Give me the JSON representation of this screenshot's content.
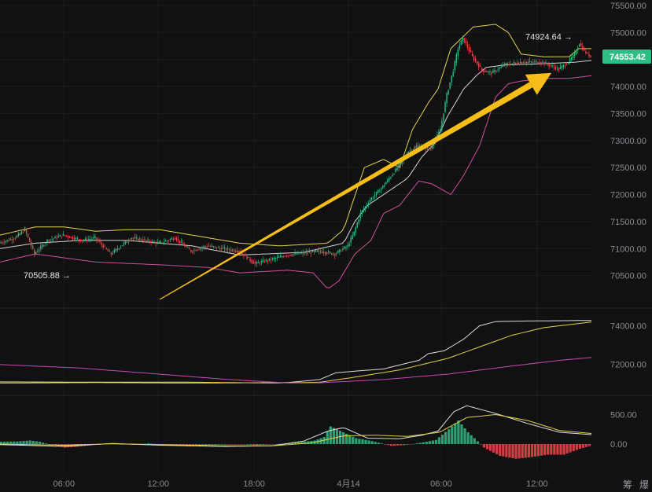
{
  "colors": {
    "background": "#111112",
    "up": "#2ebd85",
    "down": "#f0464b",
    "upper_band": "#e3d34a",
    "middle_band": "#d6d6d6",
    "lower_band": "#d24fa0",
    "arrow": "#f6bd16",
    "ma_white": "#dcdcdc",
    "ma_yellow": "#e3d34a",
    "ma_pink": "#c84bb0",
    "price_badge": "#2ebd85"
  },
  "chart_data": [
    {
      "type": "candlestick",
      "panel": "price",
      "ylim": [
        70000,
        75600
      ],
      "yticks": [
        "75500.00",
        "75000.00",
        "74500.00",
        "74000.00",
        "73500.00",
        "73000.00",
        "72500.00",
        "72000.00",
        "71500.00",
        "71000.00",
        "70500.00"
      ],
      "close_path": [
        [
          0,
          71100
        ],
        [
          10,
          71200
        ],
        [
          16,
          71350
        ],
        [
          22,
          70900
        ],
        [
          30,
          71150
        ],
        [
          40,
          71250
        ],
        [
          52,
          71150
        ],
        [
          60,
          71200
        ],
        [
          68,
          70950
        ],
        [
          70,
          70900
        ],
        [
          76,
          71050
        ],
        [
          83,
          71200
        ],
        [
          100,
          71100
        ],
        [
          110,
          71200
        ],
        [
          120,
          70950
        ],
        [
          130,
          71050
        ],
        [
          150,
          70950
        ],
        [
          160,
          70720
        ],
        [
          180,
          70880
        ],
        [
          200,
          70950
        ],
        [
          210,
          70900
        ],
        [
          218,
          71050
        ],
        [
          222,
          71300
        ],
        [
          226,
          71650
        ],
        [
          232,
          71900
        ],
        [
          240,
          72150
        ],
        [
          248,
          72450
        ],
        [
          256,
          72800
        ],
        [
          262,
          72900
        ],
        [
          270,
          72850
        ],
        [
          276,
          73200
        ],
        [
          280,
          73850
        ],
        [
          284,
          74300
        ],
        [
          287,
          74700
        ],
        [
          290,
          74900
        ],
        [
          296,
          74550
        ],
        [
          302,
          74300
        ],
        [
          308,
          74250
        ],
        [
          316,
          74400
        ],
        [
          326,
          74450
        ],
        [
          340,
          74450
        ],
        [
          350,
          74320
        ],
        [
          356,
          74450
        ],
        [
          360,
          74600
        ],
        [
          363,
          74800
        ],
        [
          366,
          74650
        ],
        [
          370,
          74550
        ]
      ],
      "candles_total": 370,
      "bollinger": {
        "upper": [
          [
            0,
            71250
          ],
          [
            22,
            71400
          ],
          [
            40,
            71400
          ],
          [
            60,
            71320
          ],
          [
            80,
            71350
          ],
          [
            100,
            71350
          ],
          [
            130,
            71200
          ],
          [
            150,
            71100
          ],
          [
            175,
            71050
          ],
          [
            205,
            71100
          ],
          [
            215,
            71350
          ],
          [
            220,
            71800
          ],
          [
            228,
            72500
          ],
          [
            240,
            72650
          ],
          [
            250,
            72500
          ],
          [
            258,
            73200
          ],
          [
            264,
            73500
          ],
          [
            268,
            73700
          ],
          [
            274,
            73950
          ],
          [
            282,
            74700
          ],
          [
            296,
            75100
          ],
          [
            310,
            75150
          ],
          [
            318,
            75000
          ],
          [
            326,
            74600
          ],
          [
            340,
            74550
          ],
          [
            356,
            74550
          ],
          [
            362,
            74700
          ],
          [
            370,
            74700
          ]
        ],
        "middle": [
          [
            0,
            71000
          ],
          [
            22,
            71100
          ],
          [
            50,
            71150
          ],
          [
            80,
            71150
          ],
          [
            120,
            71050
          ],
          [
            150,
            70880
          ],
          [
            190,
            70930
          ],
          [
            215,
            71100
          ],
          [
            222,
            71500
          ],
          [
            230,
            71800
          ],
          [
            240,
            72000
          ],
          [
            255,
            72300
          ],
          [
            264,
            72700
          ],
          [
            272,
            72950
          ],
          [
            280,
            73450
          ],
          [
            290,
            73950
          ],
          [
            298,
            74200
          ],
          [
            304,
            74350
          ],
          [
            316,
            74400
          ],
          [
            340,
            74420
          ],
          [
            360,
            74450
          ],
          [
            370,
            74480
          ]
        ],
        "lower": [
          [
            0,
            70750
          ],
          [
            22,
            70900
          ],
          [
            60,
            70750
          ],
          [
            100,
            70700
          ],
          [
            130,
            70650
          ],
          [
            150,
            70550
          ],
          [
            180,
            70600
          ],
          [
            196,
            70550
          ],
          [
            205,
            70250
          ],
          [
            212,
            70400
          ],
          [
            222,
            70900
          ],
          [
            232,
            71150
          ],
          [
            240,
            71650
          ],
          [
            250,
            71800
          ],
          [
            262,
            72250
          ],
          [
            270,
            72200
          ],
          [
            282,
            72000
          ],
          [
            290,
            72350
          ],
          [
            300,
            72900
          ],
          [
            310,
            73800
          ],
          [
            318,
            74050
          ],
          [
            326,
            74100
          ],
          [
            340,
            74150
          ],
          [
            356,
            74150
          ],
          [
            370,
            74200
          ]
        ]
      },
      "annotations": [
        {
          "text": "70505.88",
          "value": 70505.88,
          "label": "70505.88 →"
        },
        {
          "text": "74924.64",
          "value": 74924.64,
          "label": "74924.64 →"
        }
      ],
      "last_price": "74553.42",
      "arrow": {
        "from": [
          100,
          70060
        ],
        "to": [
          345,
          74250
        ]
      }
    },
    {
      "type": "line",
      "panel": "moving-averages",
      "ylim": [
        70500,
        74800
      ],
      "yticks": [
        "74000.00",
        "72000.00"
      ],
      "series": [
        {
          "color": "#dcdcdc",
          "points": [
            [
              0,
              71020
            ],
            [
              60,
              71040
            ],
            [
              120,
              71020
            ],
            [
              180,
              71040
            ],
            [
              200,
              71200
            ],
            [
              210,
              71550
            ],
            [
              224,
              71650
            ],
            [
              240,
              71750
            ],
            [
              252,
              72000
            ],
            [
              262,
              72200
            ],
            [
              268,
              72550
            ],
            [
              278,
              72700
            ],
            [
              290,
              73300
            ],
            [
              300,
              74000
            ],
            [
              310,
              74220
            ],
            [
              330,
              74250
            ],
            [
              370,
              74280
            ]
          ]
        },
        {
          "color": "#e3d34a",
          "points": [
            [
              0,
              71080
            ],
            [
              60,
              71060
            ],
            [
              120,
              71060
            ],
            [
              170,
              71020
            ],
            [
              200,
              71060
            ],
            [
              220,
              71300
            ],
            [
              250,
              71700
            ],
            [
              280,
              72300
            ],
            [
              300,
              72900
            ],
            [
              320,
              73500
            ],
            [
              340,
              73900
            ],
            [
              360,
              74100
            ],
            [
              370,
              74200
            ]
          ]
        },
        {
          "color": "#c84bb0",
          "points": [
            [
              0,
              71980
            ],
            [
              50,
              71800
            ],
            [
              100,
              71480
            ],
            [
              140,
              71220
            ],
            [
              180,
              71020
            ],
            [
              200,
              71030
            ],
            [
              240,
              71200
            ],
            [
              280,
              71480
            ],
            [
              320,
              71900
            ],
            [
              350,
              72200
            ],
            [
              370,
              72350
            ]
          ]
        }
      ]
    },
    {
      "type": "bar",
      "panel": "macd",
      "ylim": [
        -400,
        800
      ],
      "yticks": [
        "500.00",
        "0.00"
      ],
      "histogram": [
        [
          0,
          40
        ],
        [
          10,
          45
        ],
        [
          18,
          60
        ],
        [
          24,
          40
        ],
        [
          28,
          10
        ],
        [
          32,
          -10
        ],
        [
          40,
          -60
        ],
        [
          48,
          -45
        ],
        [
          56,
          -20
        ],
        [
          66,
          10
        ],
        [
          74,
          5
        ],
        [
          82,
          -15
        ],
        [
          92,
          10
        ],
        [
          104,
          -10
        ],
        [
          120,
          -20
        ],
        [
          140,
          -10
        ],
        [
          150,
          -5
        ],
        [
          160,
          -20
        ],
        [
          178,
          10
        ],
        [
          186,
          30
        ],
        [
          196,
          60
        ],
        [
          202,
          120
        ],
        [
          206,
          300
        ],
        [
          214,
          200
        ],
        [
          222,
          100
        ],
        [
          232,
          50
        ],
        [
          244,
          -30
        ],
        [
          252,
          -20
        ],
        [
          262,
          20
        ],
        [
          272,
          70
        ],
        [
          280,
          250
        ],
        [
          286,
          400
        ],
        [
          292,
          200
        ],
        [
          296,
          100
        ],
        [
          302,
          -60
        ],
        [
          312,
          -200
        ],
        [
          322,
          -250
        ],
        [
          332,
          -220
        ],
        [
          342,
          -180
        ],
        [
          352,
          -180
        ],
        [
          362,
          -80
        ],
        [
          370,
          -20
        ]
      ],
      "lines": {
        "macd": [
          [
            0,
            -10
          ],
          [
            40,
            -40
          ],
          [
            70,
            10
          ],
          [
            100,
            -20
          ],
          [
            140,
            -40
          ],
          [
            170,
            -30
          ],
          [
            190,
            50
          ],
          [
            205,
            220
          ],
          [
            215,
            280
          ],
          [
            230,
            100
          ],
          [
            250,
            90
          ],
          [
            264,
            150
          ],
          [
            274,
            220
          ],
          [
            284,
            550
          ],
          [
            292,
            650
          ],
          [
            310,
            520
          ],
          [
            330,
            350
          ],
          [
            350,
            200
          ],
          [
            370,
            160
          ]
        ],
        "signal": [
          [
            0,
            0
          ],
          [
            40,
            -20
          ],
          [
            70,
            5
          ],
          [
            100,
            -10
          ],
          [
            140,
            -30
          ],
          [
            170,
            -30
          ],
          [
            195,
            20
          ],
          [
            215,
            140
          ],
          [
            235,
            150
          ],
          [
            255,
            130
          ],
          [
            275,
            200
          ],
          [
            292,
            450
          ],
          [
            310,
            500
          ],
          [
            330,
            400
          ],
          [
            350,
            230
          ],
          [
            370,
            180
          ]
        ]
      }
    }
  ],
  "x_ticks": [
    "06:00",
    "12:00",
    "18:00",
    "4月14",
    "06:00",
    "12:00"
  ],
  "x_tick_index": [
    40,
    99,
    159,
    218,
    276,
    336
  ],
  "watermark": [
    "筹",
    "爆"
  ]
}
